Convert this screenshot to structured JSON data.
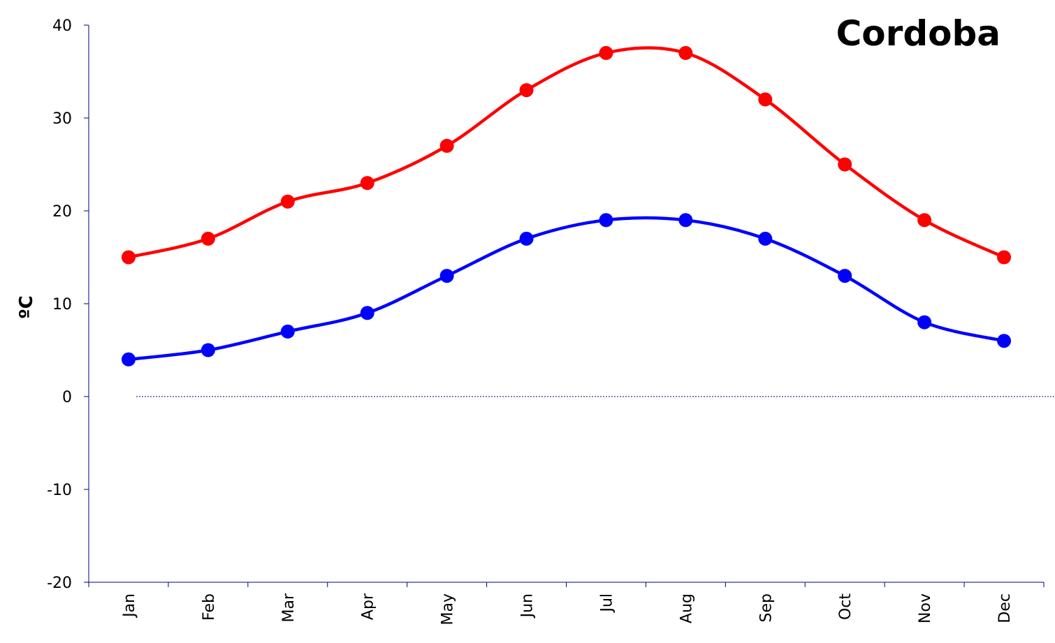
{
  "chart_data": {
    "type": "line",
    "title": "Cordoba",
    "xlabel": "",
    "ylabel": "ºC",
    "categories": [
      "Jan",
      "Feb",
      "Mar",
      "Apr",
      "May",
      "Jun",
      "Jul",
      "Aug",
      "Sep",
      "Oct",
      "Nov",
      "Dec"
    ],
    "ylim": [
      -20,
      40
    ],
    "yticks": [
      40,
      30,
      20,
      10,
      0,
      -10,
      -20
    ],
    "grid": false,
    "legend": "none",
    "zero_line": true,
    "series": [
      {
        "values": [
          15,
          17,
          21,
          23,
          27,
          33,
          37,
          37,
          32,
          25,
          19,
          15
        ],
        "color": "#ff0000"
      },
      {
        "values": [
          4,
          5,
          7,
          9,
          13,
          17,
          19,
          19,
          17,
          13,
          8,
          6
        ],
        "color": "#0000ff"
      }
    ]
  }
}
